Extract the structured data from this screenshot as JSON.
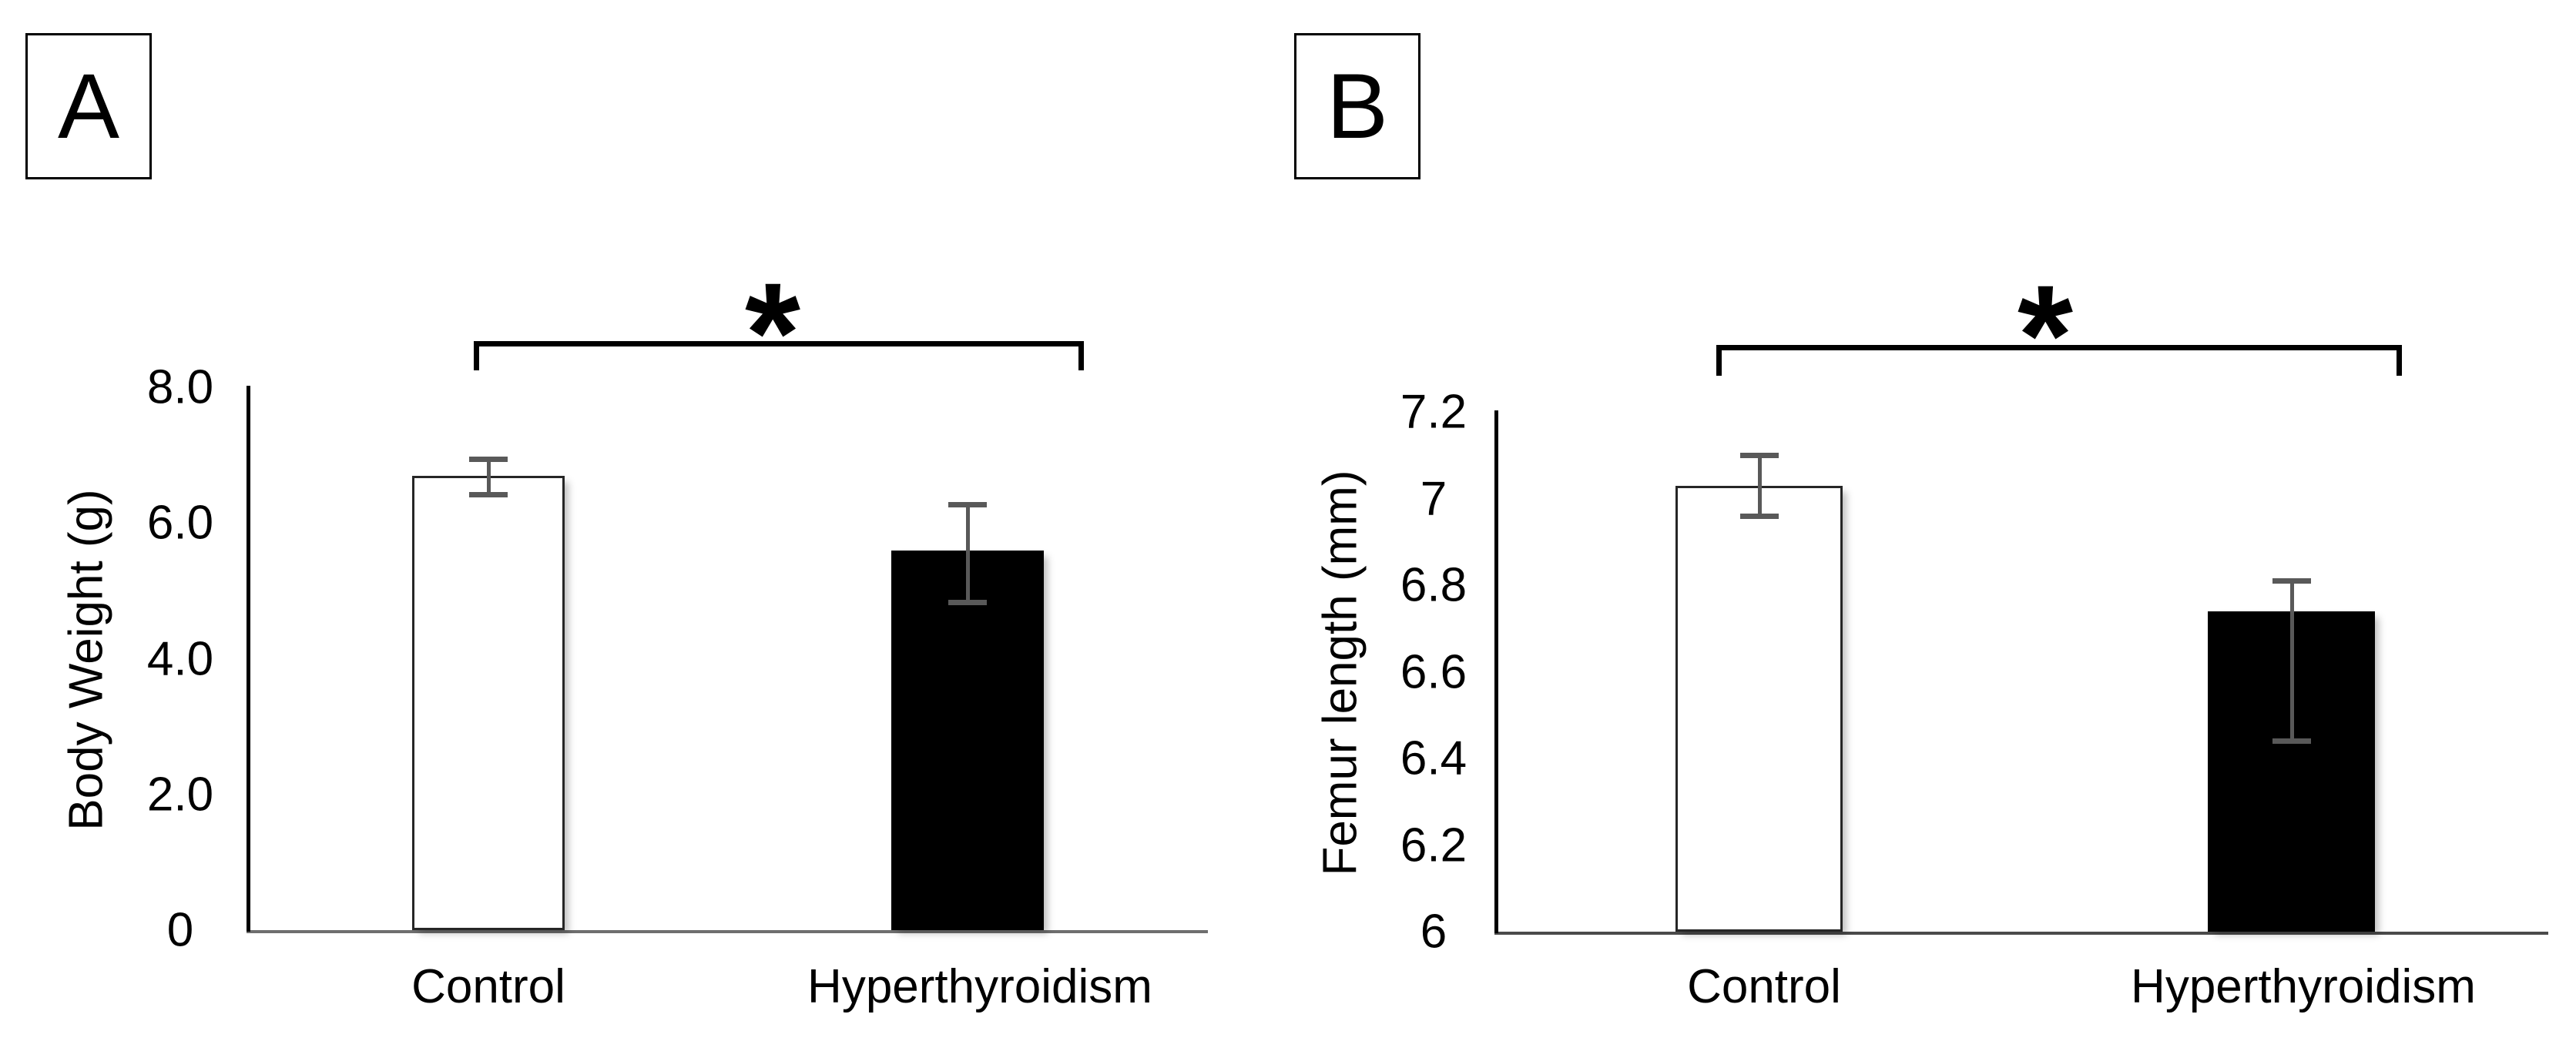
{
  "figure": {
    "description": "Two-panel bar chart comparing Control vs Hyperthyroidism groups",
    "panels": [
      "A",
      "B"
    ]
  },
  "chart_data": [
    {
      "type": "bar",
      "panel_label": "A",
      "title": "",
      "xlabel": "",
      "ylabel": "Body Weight (g)",
      "categories": [
        "Control",
        "Hyperthyroidism"
      ],
      "values": [
        6.7,
        5.6
      ],
      "error_bars": [
        {
          "low": 6.42,
          "high": 6.94
        },
        {
          "low": 4.83,
          "high": 6.28
        }
      ],
      "ylim": [
        0,
        8
      ],
      "yticks": [
        {
          "value": 8,
          "label": "8.0"
        },
        {
          "value": 6,
          "label": "6.0"
        },
        {
          "value": 4,
          "label": "4.0"
        },
        {
          "value": 2,
          "label": "2.0"
        },
        {
          "value": 0,
          "label": "0"
        }
      ],
      "bar_fills": [
        "#ffffff",
        "#000000"
      ],
      "bar_border": "#262626",
      "error_color": "#595959",
      "axis_color": "#000000",
      "baseline_color": "#6e6e6e",
      "grid": false,
      "legend": "none",
      "significance": {
        "label": "*",
        "between": [
          "Control",
          "Hyperthyroidism"
        ]
      }
    },
    {
      "type": "bar",
      "panel_label": "B",
      "title": "",
      "xlabel": "",
      "ylabel": "Femur length (mm)",
      "categories": [
        "Control",
        "Hyperthyroidism"
      ],
      "values": [
        7.03,
        6.74
      ],
      "error_bars": [
        {
          "low": 6.96,
          "high": 7.1
        },
        {
          "low": 6.44,
          "high": 6.81
        }
      ],
      "ylim": [
        6,
        7.2
      ],
      "yticks": [
        {
          "value": 7.2,
          "label": "7.2"
        },
        {
          "value": 7,
          "label": "7"
        },
        {
          "value": 6.8,
          "label": "6.8"
        },
        {
          "value": 6.6,
          "label": "6.6"
        },
        {
          "value": 6.4,
          "label": "6.4"
        },
        {
          "value": 6.2,
          "label": "6.2"
        },
        {
          "value": 6,
          "label": "6"
        }
      ],
      "bar_fills": [
        "#ffffff",
        "#000000"
      ],
      "bar_border": "#262626",
      "error_color": "#595959",
      "axis_color": "#000000",
      "baseline_color": "#4a4a4a",
      "grid": false,
      "legend": "none",
      "significance": {
        "label": "*",
        "between": [
          "Control",
          "Hyperthyroidism"
        ]
      }
    }
  ]
}
